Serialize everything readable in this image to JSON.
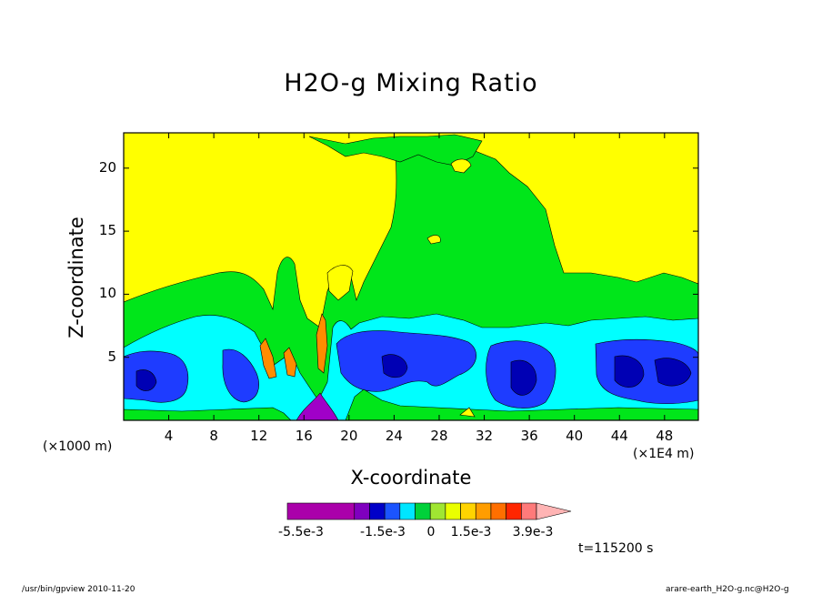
{
  "chart_data": {
    "type": "heatmap",
    "title": "H2O-g Mixing Ratio",
    "xlabel": "X-coordinate",
    "ylabel": "Z-coordinate",
    "x_unit_note": "(×1000 m)",
    "x_scale_note": "(×1E4 m)",
    "x_ticks": [
      4,
      8,
      12,
      16,
      20,
      24,
      28,
      32,
      36,
      40,
      44,
      48
    ],
    "y_ticks": [
      5,
      10,
      15,
      20
    ],
    "xlim": [
      0,
      51
    ],
    "ylim": [
      0,
      22.8
    ],
    "colorbar": {
      "levels": [
        -0.0055,
        -0.0015,
        0,
        0.0015,
        0.0039
      ],
      "labels": [
        "-5.5e-3",
        "-1.5e-3",
        "0",
        "1.5e-3",
        "3.9e-3"
      ],
      "colors": [
        "#aa00aa",
        "#7f00bf",
        "#0000c8",
        "#1b54ff",
        "#00e6ff",
        "#00d13a",
        "#a0e632",
        "#eaff00",
        "#ffd400",
        "#ff9d00",
        "#ff6f00",
        "#ff2600",
        "#ff7a7a",
        "#ffb4b4"
      ]
    },
    "regions_description_colors": {
      "yellow": "#ffff00",
      "green": "#00e61a",
      "cyan": "#00ffff",
      "blue": "#1e3cff",
      "dark_blue": "#0000b4",
      "purple": "#a000c8",
      "orange": "#ff8c00"
    }
  },
  "time_label": "t=115200 s",
  "footer": {
    "left": "/usr/bin/gpview   2010-11-20",
    "right": "arare-earth_H2O-g.nc@H2O-g"
  }
}
